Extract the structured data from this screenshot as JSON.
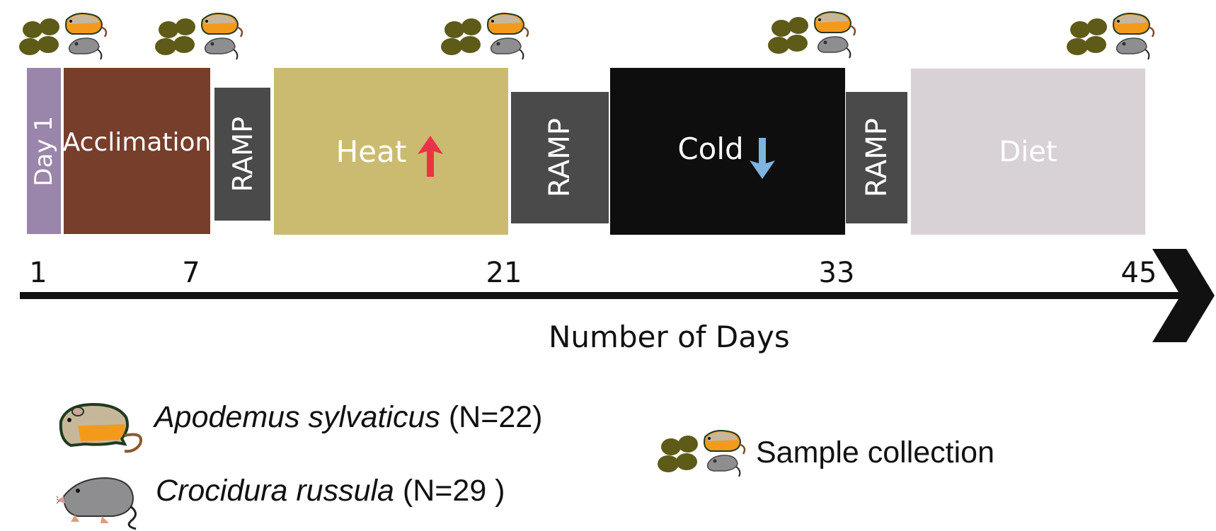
{
  "phases": {
    "day1": {
      "label": "Day 1",
      "color": "#9a86aa"
    },
    "acclimation": {
      "label": "Acclimation",
      "color": "#763e2b"
    },
    "ramp1": {
      "label": "RAMP",
      "color": "#4a4a4a"
    },
    "heat": {
      "label": "Heat",
      "color": "#cbbb70",
      "arrow_color": "#e8334a"
    },
    "ramp2": {
      "label": "RAMP",
      "color": "#4a4a4a"
    },
    "cold": {
      "label": "Cold",
      "color": "#0f0e0e",
      "arrow_color": "#7fb4e0"
    },
    "ramp3": {
      "label": "RAMP",
      "color": "#4a4a4a"
    },
    "diet": {
      "label": "Diet",
      "color": "#d8d1d5"
    }
  },
  "axis": {
    "ticks": [
      "1",
      "7",
      "21",
      "33",
      "45"
    ],
    "title": "Number of Days"
  },
  "legend": {
    "species": [
      {
        "name": "Apodemus sylvaticus",
        "count": "(N=22)",
        "icon": "wood-mouse-icon"
      },
      {
        "name": "Crocidura russula",
        "count": "(N=29 )",
        "icon": "shrew-icon"
      }
    ],
    "sample_label": "Sample collection",
    "sample_icon": "sample-collection-icon"
  },
  "colors": {
    "pellet": "#5e5a18",
    "mouse_orange": "#f39a1d",
    "shrew_gray": "#8e8e90"
  }
}
